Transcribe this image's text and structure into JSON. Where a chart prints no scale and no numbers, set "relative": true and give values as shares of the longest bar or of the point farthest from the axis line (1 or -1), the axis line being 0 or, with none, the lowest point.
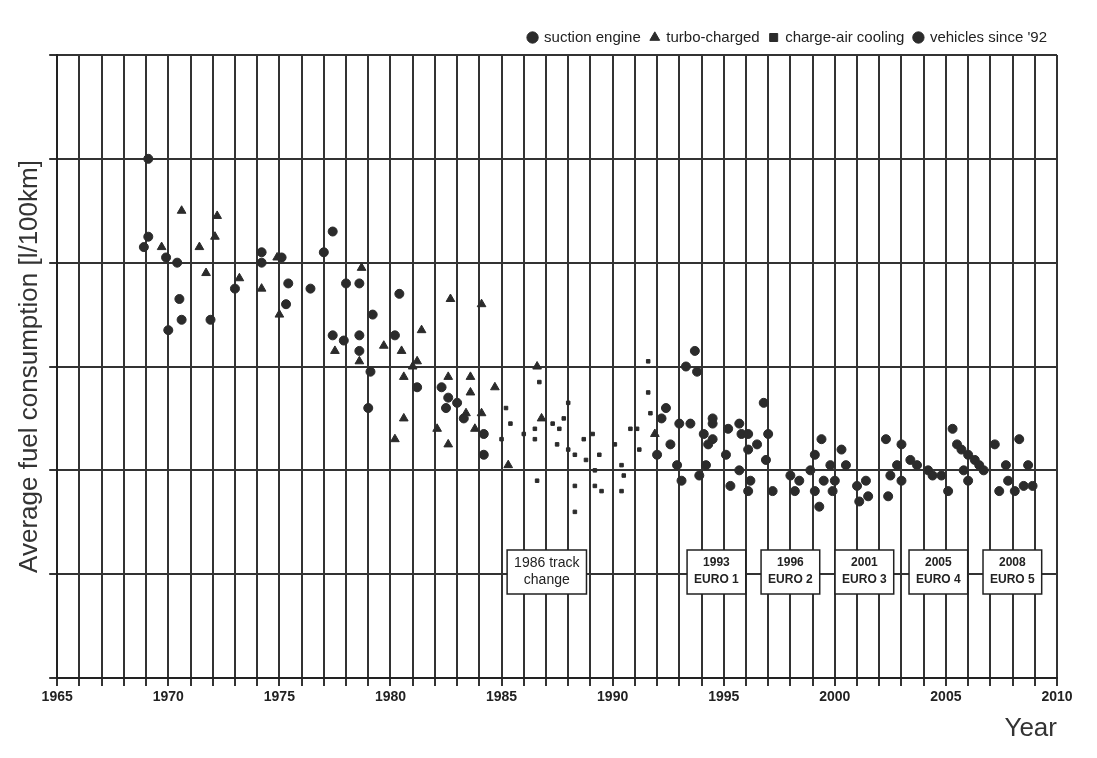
{
  "chart_data": {
    "type": "scatter",
    "relative": true,
    "xlabel": "Year",
    "ylabel": "Average fuel consumption [l/100km]",
    "xlim": [
      1965,
      2010
    ],
    "xticks": [
      1965,
      {
        "value": 1966,
        "label": null
      },
      {
        "value": 1967,
        "label": null
      },
      {
        "value": 1968,
        "label": null
      },
      {
        "value": 1969,
        "label": null
      },
      1970,
      {
        "value": 1971,
        "label": null
      },
      {
        "value": 1972,
        "label": null
      },
      {
        "value": 1973,
        "label": null
      },
      {
        "value": 1974,
        "label": null
      },
      1975,
      {
        "value": 1976,
        "label": null
      },
      {
        "value": 1977,
        "label": null
      },
      {
        "value": 1978,
        "label": null
      },
      {
        "value": 1979,
        "label": null
      },
      1980,
      {
        "value": 1981,
        "label": null
      },
      {
        "value": 1982,
        "label": null
      },
      {
        "value": 1983,
        "label": null
      },
      {
        "value": 1984,
        "label": null
      },
      1985,
      {
        "value": 1986,
        "label": null
      },
      {
        "value": 1987,
        "label": null
      },
      {
        "value": 1988,
        "label": null
      },
      {
        "value": 1989,
        "label": null
      },
      1990,
      {
        "value": 1991,
        "label": null
      },
      {
        "value": 1992,
        "label": null
      },
      {
        "value": 1993,
        "label": null
      },
      {
        "value": 1994,
        "label": null
      },
      1995,
      {
        "value": 1996,
        "label": null
      },
      {
        "value": 1997,
        "label": null
      },
      {
        "value": 1998,
        "label": null
      },
      {
        "value": 1999,
        "label": null
      },
      2000,
      {
        "value": 2001,
        "label": null
      },
      {
        "value": 2002,
        "label": null
      },
      {
        "value": 2003,
        "label": null
      },
      {
        "value": 2004,
        "label": null
      },
      2005,
      {
        "value": 2006,
        "label": null
      },
      {
        "value": 2007,
        "label": null
      },
      {
        "value": 2008,
        "label": null
      },
      {
        "value": 2009,
        "label": null
      },
      2010
    ],
    "grid": true,
    "legend": "top right",
    "series": [
      {
        "name": "suction engine",
        "color": "#2b2b2b",
        "marker": "circle",
        "x": [
          1969.1,
          1969.1,
          1968.9,
          1969.9,
          1970.4,
          1970.5,
          1970.6,
          1970.0,
          1971.9,
          1973.0,
          1974.2,
          1974.2,
          1975.1,
          1975.4,
          1975.3,
          1976.4,
          1977.0,
          1977.4,
          1978.0,
          1978.6,
          1977.4,
          1977.9,
          1978.6,
          1978.6,
          1979.2,
          1979.1,
          1980.4,
          1980.2,
          1981.2,
          1979.0,
          1982.3,
          1982.6,
          1982.5,
          1983.0,
          1983.3,
          1984.2,
          1984.2
        ],
        "values": [
          1.0,
          0.85,
          0.83,
          0.81,
          0.8,
          0.73,
          0.69,
          0.67,
          0.69,
          0.75,
          0.82,
          0.8,
          0.81,
          0.76,
          0.72,
          0.75,
          0.82,
          0.86,
          0.76,
          0.76,
          0.66,
          0.65,
          0.66,
          0.63,
          0.7,
          0.59,
          0.74,
          0.66,
          0.56,
          0.52,
          0.56,
          0.54,
          0.52,
          0.53,
          0.5,
          0.47,
          0.43
        ]
      },
      {
        "name": "turbo-charged",
        "color": "#2b2b2b",
        "marker": "triangle",
        "x": [
          1970.6,
          1972.2,
          1972.1,
          1969.7,
          1971.4,
          1971.7,
          1973.2,
          1974.2,
          1974.9,
          1975.0,
          1978.7,
          1977.5,
          1978.6,
          1979.7,
          1980.5,
          1981.4,
          1981.2,
          1981.0,
          1980.6,
          1980.6,
          1980.2,
          1982.7,
          1984.1,
          1982.6,
          1983.6,
          1983.6,
          1984.7,
          1982.1,
          1982.6,
          1983.4,
          1984.1,
          1983.8,
          1986.6,
          1986.8,
          1985.3,
          1991.9
        ],
        "values": [
          0.9,
          0.89,
          0.85,
          0.83,
          0.83,
          0.78,
          0.77,
          0.75,
          0.81,
          0.7,
          0.79,
          0.63,
          0.61,
          0.64,
          0.63,
          0.67,
          0.61,
          0.6,
          0.58,
          0.5,
          0.46,
          0.73,
          0.72,
          0.58,
          0.58,
          0.55,
          0.56,
          0.48,
          0.45,
          0.51,
          0.51,
          0.48,
          0.6,
          0.5,
          0.41,
          0.47
        ]
      },
      {
        "name": "charge-air cooling",
        "color": "#2b2b2b",
        "marker": "square",
        "x": [
          1985.0,
          1985.2,
          1985.4,
          1986.0,
          1986.5,
          1986.5,
          1986.7,
          1986.6,
          1987.3,
          1987.6,
          1987.8,
          1988.0,
          1987.5,
          1988.0,
          1988.3,
          1988.7,
          1989.1,
          1988.3,
          1988.3,
          1988.8,
          1989.2,
          1989.4,
          1989.2,
          1990.1,
          1989.5,
          1990.4,
          1990.5,
          1990.4,
          1990.8,
          1991.1,
          1991.2,
          1991.6,
          1991.6,
          1991.7
        ],
        "values": [
          0.46,
          0.52,
          0.49,
          0.47,
          0.48,
          0.46,
          0.57,
          0.38,
          0.49,
          0.48,
          0.5,
          0.53,
          0.45,
          0.44,
          0.43,
          0.46,
          0.47,
          0.37,
          0.32,
          0.42,
          0.4,
          0.43,
          0.37,
          0.45,
          0.36,
          0.41,
          0.39,
          0.36,
          0.48,
          0.48,
          0.44,
          0.61,
          0.55,
          0.51
        ]
      },
      {
        "name": "vehicles since '92",
        "color": "#2b2b2b",
        "marker": "circle",
        "x": [
          1992.0,
          1992.2,
          1992.4,
          1992.6,
          1993.0,
          1992.9,
          1993.1,
          1993.5,
          1993.3,
          1993.7,
          1993.8,
          1993.9,
          1994.1,
          1994.2,
          1994.5,
          1994.5,
          1995.1,
          1995.3,
          1995.2,
          1994.5,
          1994.3,
          1995.7,
          1995.8,
          1996.1,
          1996.1,
          1996.8,
          1996.5,
          1997.0,
          1996.9,
          1995.7,
          1996.2,
          1996.1,
          1997.2,
          1998.0,
          1998.2,
          1998.4,
          1998.9,
          1999.1,
          1999.4,
          1999.1,
          1999.3,
          1999.5,
          1999.8,
          2000.0,
          1999.9,
          2000.3,
          2000.5,
          2001.0,
          2001.1,
          2001.4,
          2001.5,
          2002.3,
          2002.4,
          2002.5,
          2002.8,
          2003.0,
          2003.0,
          2003.4,
          2003.7,
          2004.2,
          2004.4,
          2004.8,
          2005.1,
          2005.3,
          2005.5,
          2005.7,
          2006.0,
          2005.8,
          2006.3,
          2006.5,
          2006.0,
          2006.7,
          2007.2,
          2007.4,
          2007.7,
          2007.8,
          2008.1,
          2008.3,
          2008.5,
          2008.7,
          2008.9
        ],
        "values": [
          0.43,
          0.5,
          0.52,
          0.45,
          0.49,
          0.41,
          0.38,
          0.49,
          0.6,
          0.63,
          0.59,
          0.39,
          0.47,
          0.41,
          0.5,
          0.46,
          0.43,
          0.37,
          0.48,
          0.49,
          0.45,
          0.49,
          0.47,
          0.47,
          0.44,
          0.53,
          0.45,
          0.47,
          0.42,
          0.4,
          0.38,
          0.36,
          0.36,
          0.39,
          0.36,
          0.38,
          0.4,
          0.43,
          0.46,
          0.36,
          0.33,
          0.38,
          0.41,
          0.38,
          0.36,
          0.44,
          0.41,
          0.37,
          0.34,
          0.38,
          0.35,
          0.46,
          0.35,
          0.39,
          0.41,
          0.45,
          0.38,
          0.42,
          0.41,
          0.4,
          0.39,
          0.39,
          0.36,
          0.48,
          0.45,
          0.44,
          0.43,
          0.4,
          0.42,
          0.41,
          0.38,
          0.4,
          0.45,
          0.36,
          0.41,
          0.38,
          0.36,
          0.46,
          0.37,
          0.41,
          0.37
        ]
      }
    ],
    "annotations": [
      "1986 track change",
      "1993 EURO 1",
      "1996 EURO 2",
      "2001 EURO 3",
      "2005 EURO 4",
      "2008 EURO 5"
    ]
  }
}
